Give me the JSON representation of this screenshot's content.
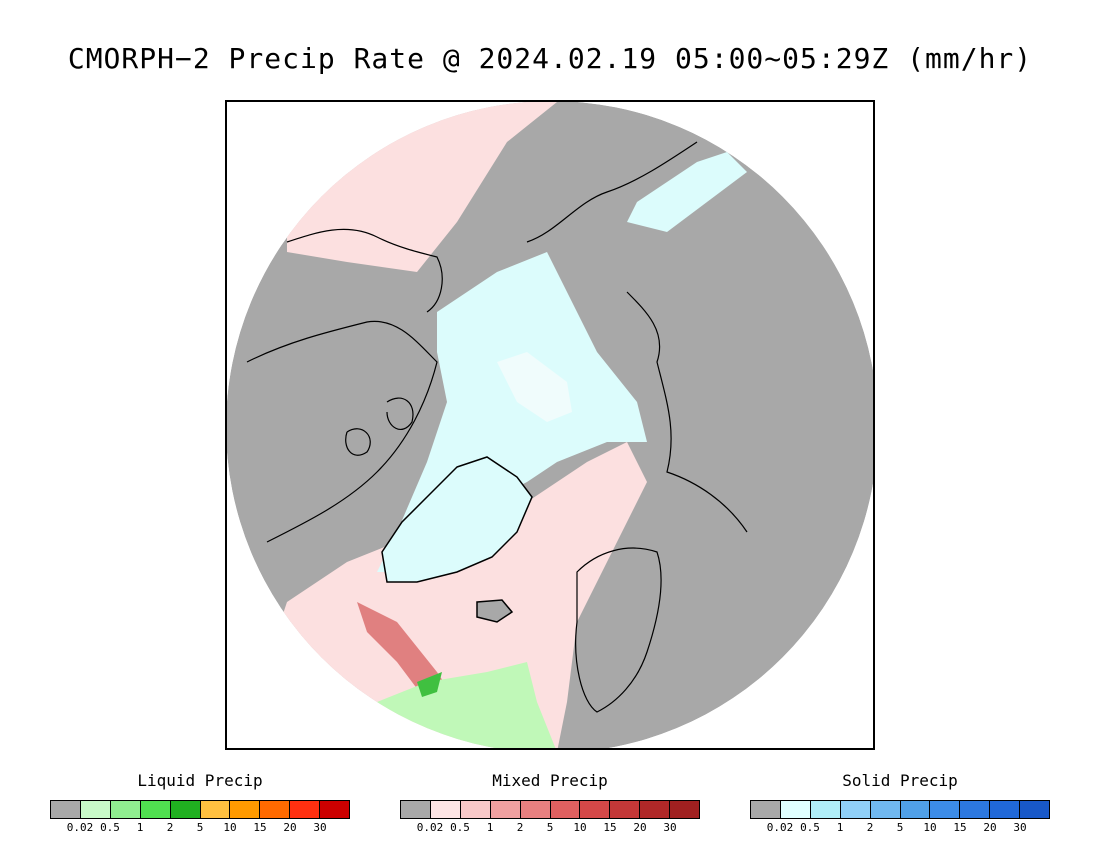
{
  "title": "CMORPH−2 Precip Rate @ 2024.02.19 05:00~05:29Z (mm/hr)",
  "map": {
    "projection": "north polar stereographic",
    "colors": {
      "no_precip": "#a8a8a8",
      "snow_light": "#dcfcfc",
      "snow_trace": "#f0fcfc",
      "mixed_light": "#fce0e0",
      "mixed_med": "#f4c0c0",
      "mixed_heavy": "#e08080",
      "rain_light": "#c0f8b8",
      "rain_med": "#90ee88",
      "rain_heavy": "#40c040",
      "coastline": "#000000"
    }
  },
  "legends": [
    {
      "title": "Liquid Precip",
      "colors": [
        "#a8a8a8",
        "#c8fac8",
        "#90ee90",
        "#50e050",
        "#20b020",
        "#ffc040",
        "#ff9a00",
        "#ff6a00",
        "#ff3010",
        "#cc0000"
      ],
      "ticks": [
        "0.02",
        "0.5",
        "1",
        "2",
        "5",
        "10",
        "15",
        "20",
        "30"
      ]
    },
    {
      "title": "Mixed Precip",
      "colors": [
        "#a8a8a8",
        "#fde4e4",
        "#f8c8c8",
        "#f0a0a0",
        "#e88080",
        "#e06060",
        "#d44848",
        "#c43838",
        "#b02828",
        "#a02020"
      ],
      "ticks": [
        "0.02",
        "0.5",
        "1",
        "2",
        "5",
        "10",
        "15",
        "20",
        "30"
      ]
    },
    {
      "title": "Solid Precip",
      "colors": [
        "#a8a8a8",
        "#e0ffff",
        "#b0eef8",
        "#90d0f8",
        "#70b8f0",
        "#50a0e8",
        "#3c8ce8",
        "#2c78e0",
        "#2068d8",
        "#1858c8"
      ],
      "ticks": [
        "0.02",
        "0.5",
        "1",
        "2",
        "5",
        "10",
        "15",
        "20",
        "30"
      ]
    }
  ]
}
